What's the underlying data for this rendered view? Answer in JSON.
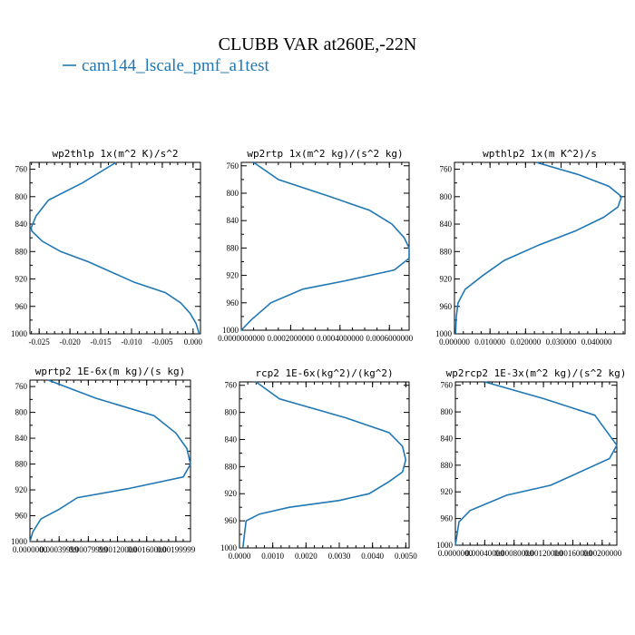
{
  "figure": {
    "title": "CLUBB VAR at260E,-22N",
    "legend": {
      "label": "cam144_lscale_pmf_a1test",
      "color": "#1f77b4"
    }
  },
  "chart_data": [
    {
      "type": "line",
      "title": "wp2thlp  1x(m^2 K)/s^2",
      "xlim": [
        -0.0265,
        0.0012
      ],
      "ylim": [
        1000,
        750
      ],
      "xticks": [
        -0.025,
        -0.02,
        -0.015,
        -0.01,
        -0.005,
        0.0
      ],
      "xtick_labels": [
        "-0.025",
        "-0.020",
        "-0.015",
        "-0.010",
        "-0.005",
        "0.000"
      ],
      "yticks": [
        760,
        800,
        840,
        880,
        920,
        960,
        1000
      ],
      "ytick_labels": [
        "760",
        "800",
        "840",
        "880",
        "920",
        "960",
        "1000"
      ],
      "series": [
        {
          "color": "#1f77b4",
          "x": [
            -0.0125,
            -0.018,
            -0.0235,
            -0.0255,
            -0.0263,
            -0.0262,
            -0.0245,
            -0.0215,
            -0.017,
            -0.0095,
            -0.0045,
            -0.002,
            -0.0005,
            0.0005,
            0.001
          ],
          "y": [
            750,
            780,
            805,
            828,
            845,
            850,
            865,
            880,
            895,
            925,
            940,
            955,
            970,
            985,
            1000
          ]
        }
      ]
    },
    {
      "type": "line",
      "title": "wp2rtp  1x(m^2 kg)/(s^2 kg)",
      "xlim": [
        0.0,
        0.00068
      ],
      "ylim": [
        1000,
        755
      ],
      "xticks": [
        0.0,
        0.0002,
        0.0004,
        0.0006
      ],
      "xtick_labels": [
        "0.0000000000",
        "0.0002000000",
        "0.0004000000",
        "0.0006000000"
      ],
      "yticks": [
        760,
        800,
        840,
        880,
        920,
        960,
        1000
      ],
      "ytick_labels": [
        "760",
        "800",
        "840",
        "880",
        "920",
        "960",
        "1000"
      ],
      "series": [
        {
          "color": "#1f77b4",
          "x": [
            5e-05,
            0.00015,
            0.00036,
            0.00052,
            0.00061,
            0.00066,
            0.00068,
            0.00068,
            0.00062,
            0.00042,
            0.00025,
            0.00012,
            4e-05,
            0.0
          ],
          "y": [
            755,
            780,
            805,
            825,
            845,
            865,
            880,
            895,
            912,
            928,
            940,
            960,
            985,
            1000
          ]
        }
      ]
    },
    {
      "type": "line",
      "title": "wpthlp2  1x(m K^2)/s",
      "xlim": [
        0.0,
        0.048
      ],
      "ylim": [
        1000,
        750
      ],
      "xticks": [
        0.0,
        0.01,
        0.02,
        0.03,
        0.04
      ],
      "xtick_labels": [
        "0.000000",
        "0.010000",
        "0.020000",
        "0.030000",
        "0.040000"
      ],
      "yticks": [
        760,
        800,
        840,
        880,
        920,
        960,
        1000
      ],
      "ytick_labels": [
        "760",
        "800",
        "840",
        "880",
        "920",
        "960",
        "1000"
      ],
      "series": [
        {
          "color": "#1f77b4",
          "x": [
            0.023,
            0.035,
            0.0435,
            0.047,
            0.046,
            0.042,
            0.034,
            0.024,
            0.014,
            0.008,
            0.003,
            0.001,
            0.0005,
            0.0003
          ],
          "y": [
            750,
            768,
            785,
            800,
            815,
            830,
            850,
            870,
            893,
            915,
            935,
            955,
            975,
            1000
          ]
        }
      ]
    },
    {
      "type": "line",
      "title": "wprtp2  1E-6x(m kg)/(s kg)",
      "xlim": [
        0.0,
        0.0022
      ],
      "ylim": [
        1000,
        750
      ],
      "xticks": [
        0.0,
        0.0004,
        0.0008,
        0.0012,
        0.0016,
        0.002
      ],
      "xtick_labels": [
        "0.0000000",
        "0.00039999",
        "0.00079999",
        "0.00120000",
        "0.00160000",
        "0.00199999"
      ],
      "yticks": [
        760,
        800,
        840,
        880,
        920,
        960,
        1000
      ],
      "ytick_labels": [
        "760",
        "800",
        "840",
        "880",
        "920",
        "960",
        "1000"
      ],
      "series": [
        {
          "color": "#1f77b4",
          "x": [
            0.00025,
            0.0009,
            0.0017,
            0.002,
            0.00215,
            0.0022,
            0.0021,
            0.00135,
            0.00065,
            0.0004,
            0.00015,
            4e-05,
            0.0
          ],
          "y": [
            750,
            778,
            805,
            832,
            856,
            880,
            900,
            918,
            932,
            950,
            965,
            985,
            1000
          ]
        }
      ]
    },
    {
      "type": "line",
      "title": "rcp2  1E-6x(kg^2)/(kg^2)",
      "xlim": [
        0.0,
        0.0051
      ],
      "ylim": [
        1000,
        755
      ],
      "xticks": [
        0.0,
        0.001,
        0.002,
        0.003,
        0.004,
        0.005
      ],
      "xtick_labels": [
        "0.0000",
        "0.0010",
        "0.0020",
        "0.0030",
        "0.0040",
        "0.0050"
      ],
      "yticks": [
        760,
        800,
        840,
        880,
        920,
        960,
        1000
      ],
      "ytick_labels": [
        "760",
        "800",
        "840",
        "880",
        "920",
        "960",
        "1000"
      ],
      "series": [
        {
          "color": "#1f77b4",
          "x": [
            0.0005,
            0.0012,
            0.0032,
            0.0045,
            0.0049,
            0.005,
            0.0049,
            0.0045,
            0.0039,
            0.003,
            0.0015,
            0.0006,
            0.0002,
            0.0001
          ],
          "y": [
            755,
            780,
            808,
            830,
            850,
            870,
            888,
            902,
            920,
            930,
            940,
            950,
            960,
            1000
          ]
        }
      ]
    },
    {
      "type": "line",
      "title": "wp2rcp2  1E-3x(m^2 kg)/(s^2 kg)",
      "xlim": [
        0.0,
        0.0022
      ],
      "ylim": [
        1000,
        755
      ],
      "xticks": [
        0.0,
        0.0004,
        0.0008,
        0.0012,
        0.0016,
        0.002
      ],
      "xtick_labels": [
        "0.0000000",
        "0.00040000",
        "0.00080000",
        "0.00120000",
        "0.00160000",
        "0.00200000"
      ],
      "yticks": [
        760,
        800,
        840,
        880,
        920,
        960,
        1000
      ],
      "ytick_labels": [
        "760",
        "800",
        "840",
        "880",
        "920",
        "960",
        "1000"
      ],
      "series": [
        {
          "color": "#1f77b4",
          "x": [
            0.0004,
            0.0012,
            0.0019,
            0.0021,
            0.0022,
            0.0021,
            0.0016,
            0.0013,
            0.0007,
            0.0002,
            5e-05,
            0.0
          ],
          "y": [
            755,
            780,
            805,
            835,
            850,
            870,
            895,
            910,
            925,
            948,
            965,
            1000
          ]
        }
      ]
    }
  ]
}
